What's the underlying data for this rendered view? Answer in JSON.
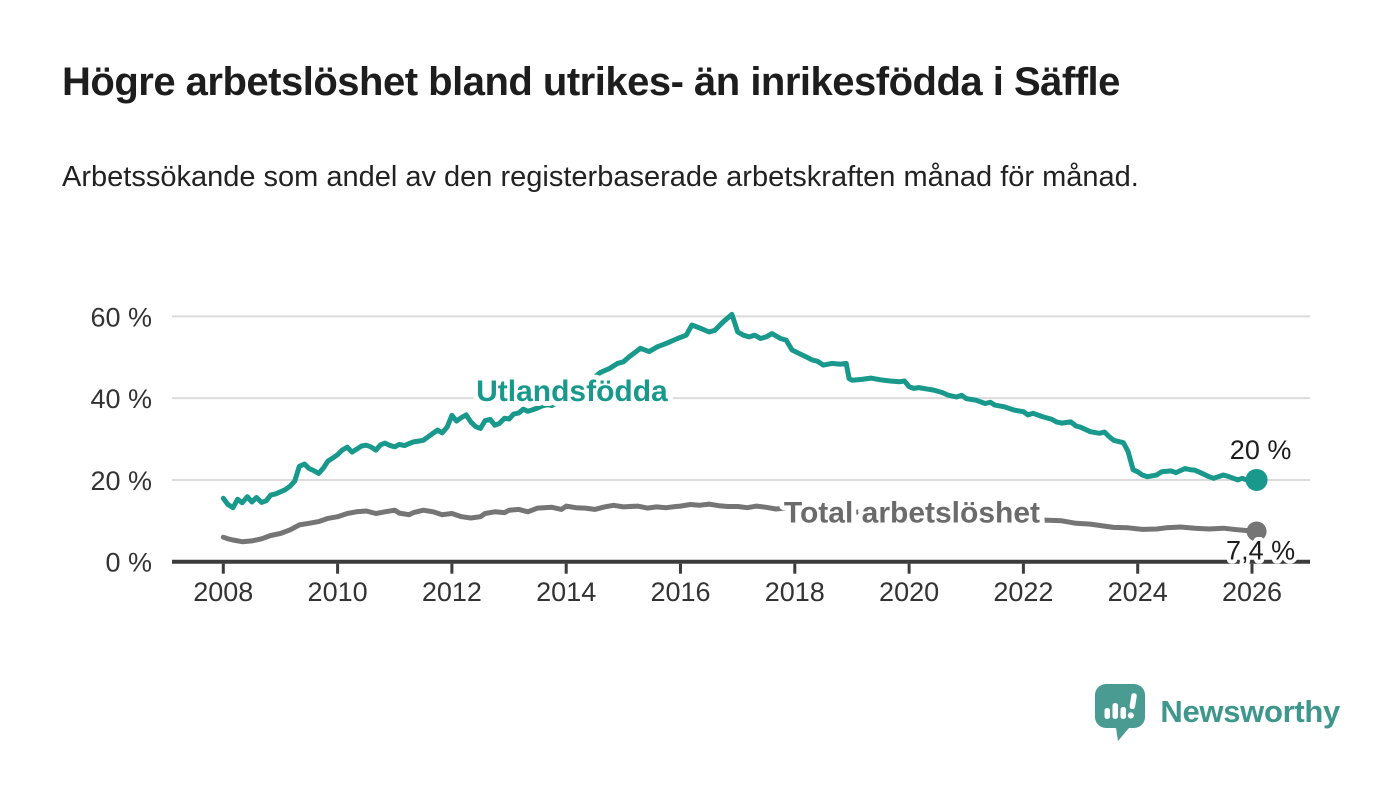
{
  "header": {
    "title": "Högre arbetslöshet bland utrikes- än inrikesfödda i Säffle",
    "subtitle": "Arbetssökande som andel av den registerbaserade arbetskraften månad för månad."
  },
  "branding": {
    "wordmark": "Newsworthy",
    "icon": "newsworthy-speech-bubble-bar-chart-icon",
    "logo_color": "#4a9c93",
    "wordmark_color": "#3f968c"
  },
  "colors": {
    "background": "#ffffff",
    "grid": "#dbdbdb",
    "axis": "#3c3c3c",
    "axis_text": "#333333",
    "title_text": "#1d1d1d",
    "series_foreign_born": "#18998c",
    "series_total": "#757575",
    "series_total_label": "#6b6b6b"
  },
  "chart_data": {
    "type": "line",
    "title": "",
    "xlabel": "",
    "ylabel": "",
    "grid": "horizontal",
    "legend_position": "inline-labels",
    "x_axis": {
      "range": [
        2007.1,
        2027.0
      ],
      "ticks": [
        2008,
        2010,
        2012,
        2014,
        2016,
        2018,
        2020,
        2022,
        2024,
        2026
      ],
      "tick_labels": [
        "2008",
        "2010",
        "2012",
        "2014",
        "2016",
        "2018",
        "2020",
        "2022",
        "2024",
        "2026"
      ]
    },
    "y_axis": {
      "range": [
        0,
        64
      ],
      "unit": "%",
      "ticks": [
        0,
        20,
        40,
        60
      ],
      "tick_labels": [
        "0 %",
        "20 %",
        "40 %",
        "60 %"
      ]
    },
    "series": [
      {
        "name": "Utlandsfödda",
        "color": "#18998c",
        "label": {
          "text": "Utlandsfödda",
          "x": 2014.1,
          "y": 41.8
        },
        "end_value": 20,
        "end_label": "20 %",
        "points": [
          [
            2008.0,
            15.5
          ],
          [
            2008.08,
            14.0
          ],
          [
            2008.17,
            13.2
          ],
          [
            2008.25,
            15.3
          ],
          [
            2008.33,
            14.4
          ],
          [
            2008.42,
            15.9
          ],
          [
            2008.5,
            14.6
          ],
          [
            2008.58,
            15.7
          ],
          [
            2008.67,
            14.5
          ],
          [
            2008.75,
            14.9
          ],
          [
            2008.83,
            16.3
          ],
          [
            2008.92,
            16.6
          ],
          [
            2009.0,
            17.1
          ],
          [
            2009.08,
            17.6
          ],
          [
            2009.17,
            18.5
          ],
          [
            2009.25,
            19.7
          ],
          [
            2009.33,
            23.3
          ],
          [
            2009.42,
            23.9
          ],
          [
            2009.5,
            22.8
          ],
          [
            2009.58,
            22.3
          ],
          [
            2009.67,
            21.6
          ],
          [
            2009.75,
            22.9
          ],
          [
            2009.83,
            24.6
          ],
          [
            2009.92,
            25.4
          ],
          [
            2010.0,
            26.2
          ],
          [
            2010.08,
            27.3
          ],
          [
            2010.17,
            28.0
          ],
          [
            2010.25,
            26.8
          ],
          [
            2010.33,
            27.5
          ],
          [
            2010.42,
            28.3
          ],
          [
            2010.5,
            28.5
          ],
          [
            2010.58,
            28.1
          ],
          [
            2010.67,
            27.3
          ],
          [
            2010.75,
            28.6
          ],
          [
            2010.83,
            29.0
          ],
          [
            2010.92,
            28.4
          ],
          [
            2011.0,
            28.1
          ],
          [
            2011.08,
            28.7
          ],
          [
            2011.17,
            28.4
          ],
          [
            2011.25,
            28.9
          ],
          [
            2011.33,
            29.3
          ],
          [
            2011.42,
            29.5
          ],
          [
            2011.5,
            29.7
          ],
          [
            2011.58,
            30.5
          ],
          [
            2011.67,
            31.4
          ],
          [
            2011.75,
            32.2
          ],
          [
            2011.83,
            31.5
          ],
          [
            2011.92,
            33.0
          ],
          [
            2012.0,
            35.8
          ],
          [
            2012.08,
            34.4
          ],
          [
            2012.17,
            35.3
          ],
          [
            2012.25,
            35.9
          ],
          [
            2012.33,
            34.2
          ],
          [
            2012.42,
            33.0
          ],
          [
            2012.5,
            32.6
          ],
          [
            2012.58,
            34.5
          ],
          [
            2012.67,
            34.8
          ],
          [
            2012.75,
            33.4
          ],
          [
            2012.83,
            33.8
          ],
          [
            2012.92,
            35.1
          ],
          [
            2013.0,
            34.9
          ],
          [
            2013.08,
            36.1
          ],
          [
            2013.17,
            36.4
          ],
          [
            2013.25,
            37.3
          ],
          [
            2013.33,
            36.8
          ],
          [
            2013.42,
            37.2
          ],
          [
            2013.5,
            37.6
          ],
          [
            2013.58,
            38.1
          ],
          [
            2013.67,
            38.4
          ],
          [
            2013.75,
            38.2
          ],
          [
            2013.83,
            38.9
          ],
          [
            2013.92,
            39.4
          ],
          [
            2014.0,
            40.1
          ],
          [
            2014.17,
            41.5
          ],
          [
            2014.33,
            43.0
          ],
          [
            2014.5,
            45.2
          ],
          [
            2014.6,
            46.3
          ],
          [
            2014.75,
            47.2
          ],
          [
            2014.9,
            48.5
          ],
          [
            2015.0,
            48.9
          ],
          [
            2015.1,
            50.1
          ],
          [
            2015.3,
            52.2
          ],
          [
            2015.45,
            51.4
          ],
          [
            2015.6,
            52.6
          ],
          [
            2015.75,
            53.4
          ],
          [
            2015.95,
            54.6
          ],
          [
            2016.1,
            55.4
          ],
          [
            2016.2,
            57.9
          ],
          [
            2016.35,
            57.1
          ],
          [
            2016.5,
            56.2
          ],
          [
            2016.6,
            56.6
          ],
          [
            2016.75,
            58.7
          ],
          [
            2016.9,
            60.5
          ],
          [
            2017.0,
            56.2
          ],
          [
            2017.1,
            55.4
          ],
          [
            2017.2,
            55.0
          ],
          [
            2017.3,
            55.4
          ],
          [
            2017.4,
            54.6
          ],
          [
            2017.5,
            55.0
          ],
          [
            2017.6,
            55.8
          ],
          [
            2017.75,
            54.6
          ],
          [
            2017.85,
            54.2
          ],
          [
            2017.95,
            51.8
          ],
          [
            2018.05,
            51.1
          ],
          [
            2018.2,
            50.1
          ],
          [
            2018.3,
            49.4
          ],
          [
            2018.4,
            49.0
          ],
          [
            2018.5,
            48.1
          ],
          [
            2018.65,
            48.5
          ],
          [
            2018.8,
            48.3
          ],
          [
            2018.9,
            48.5
          ],
          [
            2018.95,
            44.8
          ],
          [
            2019.0,
            44.4
          ],
          [
            2019.17,
            44.6
          ],
          [
            2019.33,
            44.9
          ],
          [
            2019.5,
            44.5
          ],
          [
            2019.67,
            44.2
          ],
          [
            2019.83,
            44.0
          ],
          [
            2019.92,
            44.2
          ],
          [
            2020.0,
            42.8
          ],
          [
            2020.08,
            42.4
          ],
          [
            2020.17,
            42.6
          ],
          [
            2020.33,
            42.2
          ],
          [
            2020.42,
            42.0
          ],
          [
            2020.58,
            41.4
          ],
          [
            2020.67,
            40.8
          ],
          [
            2020.83,
            40.3
          ],
          [
            2020.92,
            40.7
          ],
          [
            2021.0,
            39.9
          ],
          [
            2021.17,
            39.5
          ],
          [
            2021.33,
            38.7
          ],
          [
            2021.42,
            39.0
          ],
          [
            2021.5,
            38.3
          ],
          [
            2021.67,
            37.9
          ],
          [
            2021.83,
            37.1
          ],
          [
            2021.92,
            36.9
          ],
          [
            2022.0,
            36.7
          ],
          [
            2022.08,
            35.9
          ],
          [
            2022.17,
            36.3
          ],
          [
            2022.33,
            35.5
          ],
          [
            2022.5,
            34.8
          ],
          [
            2022.58,
            34.2
          ],
          [
            2022.67,
            33.9
          ],
          [
            2022.83,
            34.2
          ],
          [
            2022.92,
            33.2
          ],
          [
            2023.0,
            32.9
          ],
          [
            2023.17,
            31.8
          ],
          [
            2023.33,
            31.4
          ],
          [
            2023.42,
            31.7
          ],
          [
            2023.5,
            30.6
          ],
          [
            2023.58,
            29.7
          ],
          [
            2023.75,
            29.1
          ],
          [
            2023.83,
            27.0
          ],
          [
            2023.92,
            22.5
          ],
          [
            2024.0,
            22.0
          ],
          [
            2024.08,
            21.2
          ],
          [
            2024.17,
            20.8
          ],
          [
            2024.33,
            21.2
          ],
          [
            2024.42,
            22.0
          ],
          [
            2024.58,
            22.2
          ],
          [
            2024.67,
            21.8
          ],
          [
            2024.83,
            22.8
          ],
          [
            2024.92,
            22.5
          ],
          [
            2025.0,
            22.4
          ],
          [
            2025.08,
            21.9
          ],
          [
            2025.25,
            20.8
          ],
          [
            2025.33,
            20.4
          ],
          [
            2025.5,
            21.2
          ],
          [
            2025.58,
            20.9
          ],
          [
            2025.75,
            20.0
          ],
          [
            2025.83,
            20.4
          ],
          [
            2025.92,
            19.9
          ],
          [
            2026.0,
            20.0
          ],
          [
            2026.08,
            20.0
          ]
        ]
      },
      {
        "name": "Total arbetslöshet",
        "color": "#757575",
        "label": {
          "text": "Total arbetslöshet",
          "x": 2020.05,
          "y": 12.0
        },
        "end_value": 7.4,
        "end_label": "7,4 %",
        "points": [
          [
            2008.0,
            6.0
          ],
          [
            2008.08,
            5.6
          ],
          [
            2008.17,
            5.3
          ],
          [
            2008.33,
            4.9
          ],
          [
            2008.5,
            5.1
          ],
          [
            2008.67,
            5.6
          ],
          [
            2008.83,
            6.4
          ],
          [
            2009.0,
            6.9
          ],
          [
            2009.17,
            7.8
          ],
          [
            2009.33,
            9.0
          ],
          [
            2009.5,
            9.4
          ],
          [
            2009.67,
            9.8
          ],
          [
            2009.83,
            10.6
          ],
          [
            2010.0,
            11.0
          ],
          [
            2010.17,
            11.8
          ],
          [
            2010.33,
            12.2
          ],
          [
            2010.5,
            12.4
          ],
          [
            2010.67,
            11.8
          ],
          [
            2010.83,
            12.2
          ],
          [
            2011.0,
            12.6
          ],
          [
            2011.08,
            11.9
          ],
          [
            2011.25,
            11.5
          ],
          [
            2011.33,
            12.0
          ],
          [
            2011.5,
            12.6
          ],
          [
            2011.67,
            12.2
          ],
          [
            2011.83,
            11.5
          ],
          [
            2012.0,
            11.8
          ],
          [
            2012.17,
            11.0
          ],
          [
            2012.33,
            10.7
          ],
          [
            2012.5,
            11.0
          ],
          [
            2012.58,
            11.8
          ],
          [
            2012.75,
            12.2
          ],
          [
            2012.92,
            12.0
          ],
          [
            2013.0,
            12.6
          ],
          [
            2013.17,
            12.8
          ],
          [
            2013.33,
            12.2
          ],
          [
            2013.5,
            13.1
          ],
          [
            2013.75,
            13.3
          ],
          [
            2013.92,
            12.8
          ],
          [
            2014.0,
            13.6
          ],
          [
            2014.17,
            13.2
          ],
          [
            2014.33,
            13.1
          ],
          [
            2014.5,
            12.8
          ],
          [
            2014.67,
            13.4
          ],
          [
            2014.83,
            13.8
          ],
          [
            2015.0,
            13.4
          ],
          [
            2015.25,
            13.6
          ],
          [
            2015.42,
            13.1
          ],
          [
            2015.58,
            13.4
          ],
          [
            2015.75,
            13.2
          ],
          [
            2015.92,
            13.5
          ],
          [
            2016.0,
            13.6
          ],
          [
            2016.17,
            14.0
          ],
          [
            2016.33,
            13.8
          ],
          [
            2016.5,
            14.1
          ],
          [
            2016.67,
            13.7
          ],
          [
            2016.83,
            13.5
          ],
          [
            2017.0,
            13.5
          ],
          [
            2017.17,
            13.2
          ],
          [
            2017.33,
            13.6
          ],
          [
            2017.5,
            13.3
          ],
          [
            2017.67,
            12.9
          ],
          [
            2017.83,
            13.1
          ],
          [
            2018.0,
            13.0
          ],
          [
            2018.15,
            13.4
          ],
          [
            2018.3,
            12.9
          ],
          [
            2018.67,
            12.6
          ],
          [
            2019.0,
            12.2
          ],
          [
            2019.5,
            11.8
          ],
          [
            2020.0,
            11.6
          ],
          [
            2020.5,
            11.2
          ],
          [
            2021.0,
            10.9
          ],
          [
            2021.5,
            10.6
          ],
          [
            2022.0,
            10.3
          ],
          [
            2022.5,
            10.1
          ],
          [
            2022.67,
            10.0
          ],
          [
            2022.92,
            9.4
          ],
          [
            2023.17,
            9.2
          ],
          [
            2023.42,
            8.7
          ],
          [
            2023.58,
            8.4
          ],
          [
            2023.83,
            8.3
          ],
          [
            2024.08,
            7.9
          ],
          [
            2024.33,
            8.0
          ],
          [
            2024.5,
            8.3
          ],
          [
            2024.75,
            8.5
          ],
          [
            2025.0,
            8.2
          ],
          [
            2025.25,
            8.0
          ],
          [
            2025.5,
            8.2
          ],
          [
            2025.75,
            7.8
          ],
          [
            2026.0,
            7.5
          ],
          [
            2026.08,
            7.4
          ]
        ]
      }
    ]
  }
}
